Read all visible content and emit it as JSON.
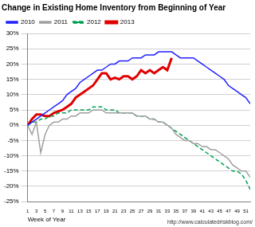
{
  "chart_data": {
    "type": "line",
    "title": "Change in Existing Home Inventory from Beginning of Year",
    "x_label": "Week of Year",
    "annotation": "http://www.calculatedriskblog.com/",
    "x": [
      1,
      2,
      3,
      4,
      5,
      6,
      7,
      8,
      9,
      10,
      11,
      12,
      13,
      14,
      15,
      16,
      17,
      18,
      19,
      20,
      21,
      22,
      23,
      24,
      25,
      26,
      27,
      28,
      29,
      30,
      31,
      32,
      33,
      34,
      35,
      36,
      37,
      38,
      39,
      40,
      41,
      42,
      43,
      44,
      45,
      46,
      47,
      48,
      49,
      50,
      51,
      52
    ],
    "xlim": [
      1,
      52
    ],
    "xticks": [
      1,
      3,
      5,
      7,
      9,
      11,
      13,
      15,
      17,
      19,
      21,
      23,
      25,
      27,
      29,
      31,
      33,
      35,
      37,
      39,
      41,
      43,
      45,
      47,
      49,
      51
    ],
    "ylim": [
      -25,
      30
    ],
    "yticks": [
      {
        "value": -25,
        "label": "-25%"
      },
      {
        "value": -20,
        "label": "-20%"
      },
      {
        "value": -15,
        "label": "-15%"
      },
      {
        "value": -10,
        "label": "-10%"
      },
      {
        "value": -5,
        "label": "-5%"
      },
      {
        "value": 0,
        "label": "0%"
      },
      {
        "value": 5,
        "label": "5%"
      },
      {
        "value": 10,
        "label": "10%"
      },
      {
        "value": 15,
        "label": "15%"
      },
      {
        "value": 20,
        "label": "20%"
      },
      {
        "value": 25,
        "label": "25%"
      },
      {
        "value": 30,
        "label": "30%"
      }
    ],
    "grid": "y",
    "legend": "top-left",
    "series": [
      {
        "name": "2010",
        "color": "#2020ff",
        "line_style": "solid",
        "values": [
          0,
          1,
          2,
          3,
          4,
          5,
          6,
          7,
          8,
          10,
          11,
          12,
          14,
          15,
          16,
          17,
          18,
          18,
          19,
          20,
          20,
          21,
          21,
          21,
          22,
          22,
          22,
          23,
          23,
          23,
          24,
          24,
          24,
          24,
          23,
          22,
          22,
          22,
          22,
          21,
          20,
          19,
          18,
          17,
          16,
          15,
          13,
          12,
          11,
          10,
          9,
          7
        ]
      },
      {
        "name": "2011",
        "color": "#a0a0a0",
        "line_style": "solid",
        "values": [
          0,
          -3,
          1,
          -9,
          -3,
          0,
          1,
          1,
          2,
          2,
          3,
          3,
          4,
          4,
          4,
          5,
          5,
          5,
          4,
          4,
          4,
          4,
          4,
          4,
          4,
          3,
          3,
          3,
          2,
          2,
          1,
          1,
          0,
          -1,
          -3,
          -4,
          -5,
          -5,
          -6,
          -6,
          -7,
          -7,
          -8,
          -8,
          -9,
          -10,
          -11,
          -13,
          -14,
          -15,
          -15,
          -17
        ]
      },
      {
        "name": "2012",
        "color": "#00a050",
        "line_style": "dashed",
        "values": [
          0,
          1,
          1,
          2,
          2,
          3,
          3,
          4,
          4,
          4,
          5,
          5,
          5,
          5,
          5,
          6,
          6,
          6,
          5,
          5,
          5,
          4,
          4,
          4,
          4,
          3,
          3,
          3,
          2,
          2,
          1,
          1,
          0,
          -1,
          -2,
          -3,
          -4,
          -5,
          -6,
          -7,
          -8,
          -9,
          -10,
          -11,
          -12,
          -13,
          -14,
          -15,
          -15,
          -16,
          -18,
          -21
        ]
      },
      {
        "name": "2013",
        "color": "#e00000",
        "line_style": "solid",
        "values": [
          0,
          2,
          3.5,
          3.5,
          3,
          3,
          4,
          4.5,
          5,
          6,
          7,
          9,
          10,
          11,
          12,
          13,
          15,
          17,
          17,
          15,
          15.5,
          15,
          16,
          16,
          15,
          16,
          18,
          17,
          18,
          17,
          18,
          19,
          18,
          22,
          null,
          null,
          null,
          null,
          null,
          null,
          null,
          null,
          null,
          null,
          null,
          null,
          null,
          null,
          null,
          null,
          null,
          null
        ]
      }
    ]
  }
}
